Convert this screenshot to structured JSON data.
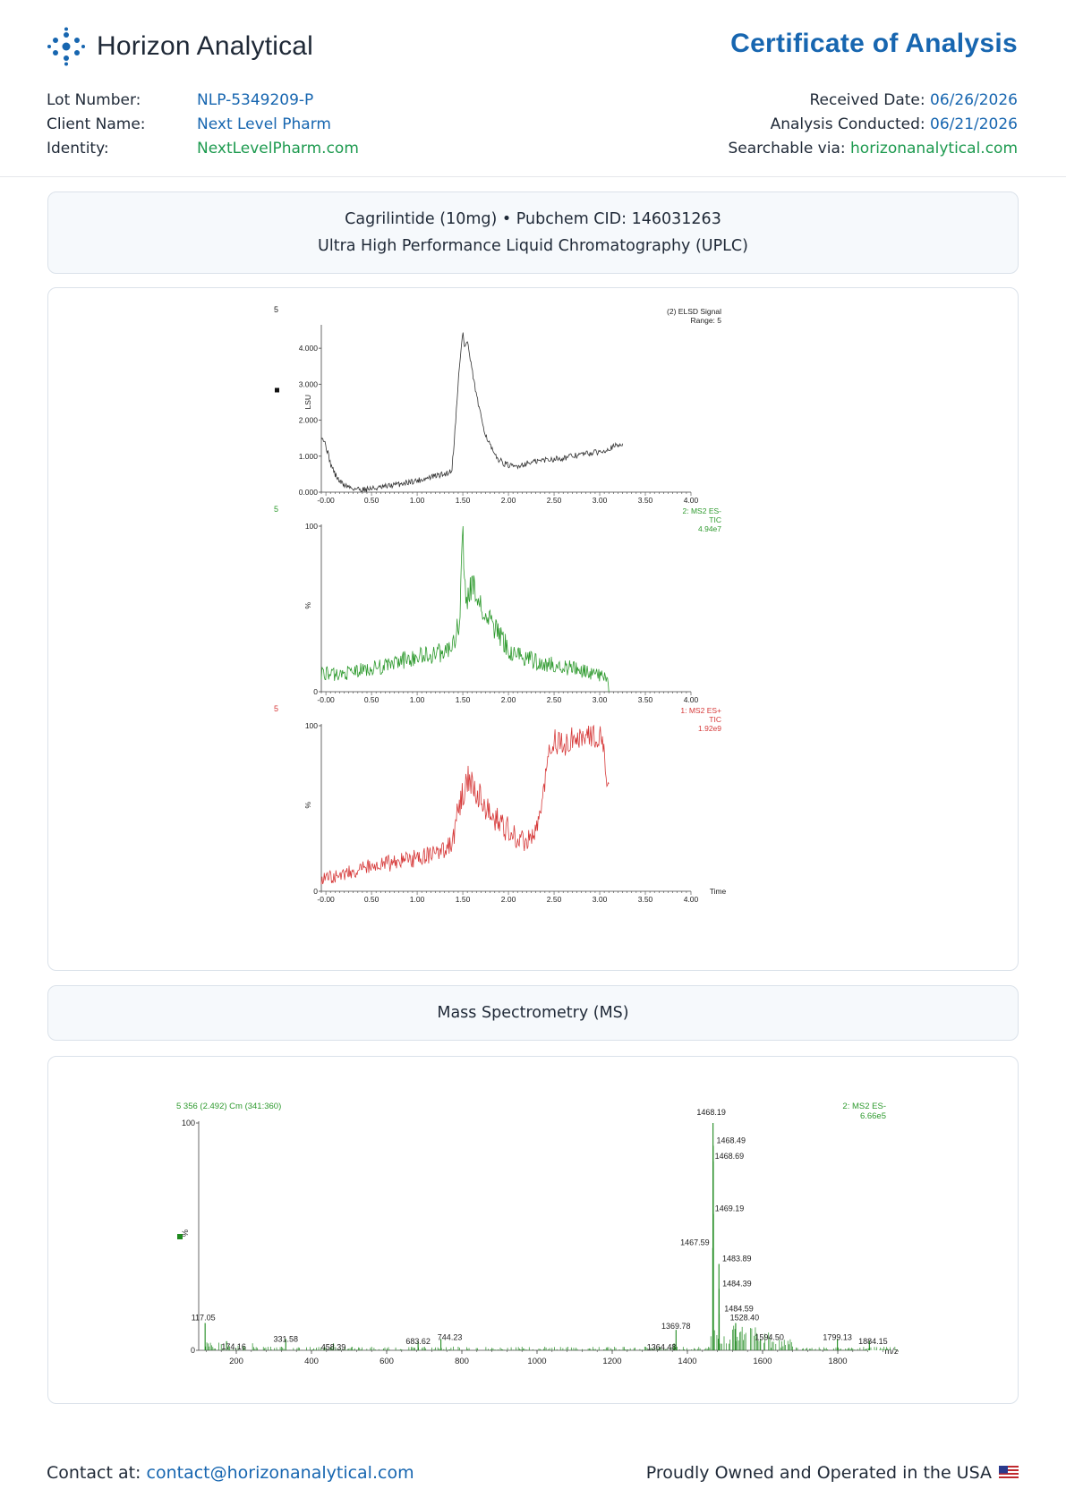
{
  "header": {
    "brand": "Horizon Analytical",
    "title": "Certificate of Analysis",
    "logo_icon": "molecule-dots-icon",
    "colors": {
      "primary": "#1766b0",
      "secondary": "#1d9a4f"
    }
  },
  "meta": {
    "lot_label": "Lot Number:",
    "lot_value": "NLP-5349209-P",
    "client_label": "Client Name:",
    "client_value": "Next Level Pharm",
    "identity_label": "Identity:",
    "identity_value": "NextLevelPharm.com",
    "received_label": "Received Date:",
    "received_value": "06/26/2026",
    "analysis_label": "Analysis Conducted:",
    "analysis_value": "06/21/2026",
    "search_label": "Searchable via:",
    "search_value": "horizonanalytical.com"
  },
  "sections": {
    "uplc_line1": "Cagrilintide (10mg) • Pubchem CID: 146031263",
    "uplc_line2": "Ultra High Performance Liquid Chromatography (UPLC)",
    "ms_title": "Mass Spectrometry (MS)"
  },
  "chart_data": [
    {
      "type": "line",
      "id": "elsd",
      "corner_label": "5",
      "annotation": [
        "(2) ELSD Signal",
        "Range: 5"
      ],
      "ylabel": "LSU",
      "yticks": [
        "0.000",
        "1.000",
        "2.000",
        "3.000",
        "4.000"
      ],
      "ylim": [
        0,
        4.6
      ],
      "xlim": [
        -0.05,
        4.0
      ],
      "xticks": [
        "-0.00",
        "0.50",
        "1.00",
        "1.50",
        "2.00",
        "2.50",
        "3.00",
        "3.50",
        "4.00"
      ],
      "color": "#333333",
      "x": [
        -0.05,
        0.0,
        0.05,
        0.1,
        0.15,
        0.2,
        0.3,
        0.4,
        0.5,
        0.6,
        0.7,
        0.8,
        0.9,
        1.0,
        1.1,
        1.2,
        1.3,
        1.38,
        1.42,
        1.45,
        1.48,
        1.5,
        1.52,
        1.55,
        1.58,
        1.62,
        1.68,
        1.75,
        1.85,
        1.95,
        2.05,
        2.2,
        2.4,
        2.6,
        2.8,
        3.0,
        3.1,
        3.2,
        3.25
      ],
      "y": [
        1.6,
        1.3,
        0.8,
        0.5,
        0.3,
        0.2,
        0.1,
        0.08,
        0.1,
        0.12,
        0.18,
        0.22,
        0.28,
        0.32,
        0.38,
        0.45,
        0.5,
        0.6,
        1.9,
        3.1,
        3.9,
        4.5,
        4.0,
        4.2,
        3.7,
        3.1,
        2.3,
        1.6,
        1.0,
        0.8,
        0.7,
        0.8,
        0.9,
        0.95,
        1.05,
        1.12,
        1.22,
        1.3,
        1.35
      ]
    },
    {
      "type": "line",
      "id": "ms2-neg",
      "corner_label": "5",
      "annotation": [
        "2: MS2 ES-",
        "TIC",
        "4.94e7"
      ],
      "ylabel": "%",
      "yticks": [
        "0",
        "100"
      ],
      "ylim": [
        0,
        100
      ],
      "xlim": [
        -0.05,
        4.0
      ],
      "xticks": [
        "-0.00",
        "0.50",
        "1.00",
        "1.50",
        "2.00",
        "2.50",
        "3.00",
        "3.50",
        "4.00"
      ],
      "color": "#2e9a2e",
      "x": [
        -0.05,
        0.1,
        0.3,
        0.5,
        0.7,
        0.9,
        1.1,
        1.3,
        1.42,
        1.47,
        1.5,
        1.52,
        1.55,
        1.6,
        1.65,
        1.7,
        1.8,
        1.9,
        2.0,
        2.2,
        2.4,
        2.6,
        2.8,
        3.0,
        3.08,
        3.1
      ],
      "y": [
        12,
        10,
        12,
        14,
        16,
        20,
        22,
        24,
        30,
        48,
        100,
        60,
        55,
        65,
        58,
        50,
        42,
        35,
        25,
        20,
        17,
        15,
        13,
        10,
        8,
        0
      ]
    },
    {
      "type": "line",
      "id": "ms2-pos",
      "corner_label": "5",
      "annotation": [
        "1: MS2 ES+",
        "TIC",
        "1.92e9"
      ],
      "ylabel": "%",
      "yticks": [
        "0",
        "100"
      ],
      "ylim": [
        0,
        100
      ],
      "xlim": [
        -0.05,
        4.0
      ],
      "xticks": [
        "-0.00",
        "0.50",
        "1.00",
        "1.50",
        "2.00",
        "2.50",
        "3.00",
        "3.50",
        "4.00"
      ],
      "xlabel": "Time",
      "color": "#d63a3a",
      "x": [
        -0.05,
        0.1,
        0.3,
        0.5,
        0.7,
        0.9,
        1.1,
        1.3,
        1.38,
        1.45,
        1.55,
        1.6,
        1.7,
        1.8,
        1.9,
        2.0,
        2.1,
        2.2,
        2.3,
        2.35,
        2.4,
        2.45,
        2.5,
        2.6,
        2.7,
        2.8,
        2.9,
        3.0,
        3.05,
        3.1
      ],
      "y": [
        8,
        9,
        12,
        15,
        17,
        19,
        21,
        24,
        28,
        50,
        68,
        65,
        56,
        47,
        42,
        37,
        32,
        30,
        35,
        45,
        68,
        88,
        90,
        88,
        92,
        90,
        93,
        95,
        80,
        65
      ]
    },
    {
      "type": "bar",
      "id": "ms-spectrum",
      "scan_label": "5 356 (2.492) Cm (341:360)",
      "annotation": [
        "2: MS2 ES-",
        "6.66e5"
      ],
      "ylabel": "%",
      "yticks": [
        "0",
        "100"
      ],
      "ylim": [
        0,
        100
      ],
      "xlim": [
        100,
        2000
      ],
      "xticks": [
        "200",
        "400",
        "600",
        "800",
        "1000",
        "1200",
        "1400",
        "1600",
        "1800"
      ],
      "xlabel": "m/z",
      "color": "#1f8a1f",
      "peaks": [
        {
          "x": 117.05,
          "y": 12,
          "label": "117.05"
        },
        {
          "x": 174.16,
          "y": 4,
          "label": "174.16"
        },
        {
          "x": 331.58,
          "y": 5,
          "label": "331.58"
        },
        {
          "x": 458.39,
          "y": 3,
          "label": "458.39"
        },
        {
          "x": 683.62,
          "y": 4,
          "label": "683.62"
        },
        {
          "x": 744.23,
          "y": 5,
          "label": "744.23"
        },
        {
          "x": 1364.48,
          "y": 3,
          "label": "1364.48"
        },
        {
          "x": 1369.78,
          "y": 9,
          "label": "1369.78"
        },
        {
          "x": 1467.59,
          "y": 45,
          "label": "1467.59"
        },
        {
          "x": 1468.19,
          "y": 100,
          "label": "1468.19"
        },
        {
          "x": 1468.49,
          "y": 90,
          "label": "1468.49"
        },
        {
          "x": 1468.69,
          "y": 83,
          "label": "1468.69"
        },
        {
          "x": 1469.19,
          "y": 60,
          "label": "1469.19"
        },
        {
          "x": 1483.89,
          "y": 38,
          "label": "1483.89"
        },
        {
          "x": 1484.39,
          "y": 27,
          "label": "1484.39"
        },
        {
          "x": 1484.59,
          "y": 16,
          "label": "1484.59"
        },
        {
          "x": 1528.4,
          "y": 12,
          "label": "1528.40"
        },
        {
          "x": 1594.5,
          "y": 5,
          "label": "1594.50"
        },
        {
          "x": 1799.13,
          "y": 5,
          "label": "1799.13"
        },
        {
          "x": 1884.15,
          "y": 4,
          "label": "1884.15"
        }
      ]
    }
  ],
  "footer": {
    "contact_label": "Contact at:",
    "contact_email": "contact@horizonanalytical.com",
    "tagline": "Proudly Owned and Operated in the USA",
    "flag_icon": "us-flag-icon"
  }
}
